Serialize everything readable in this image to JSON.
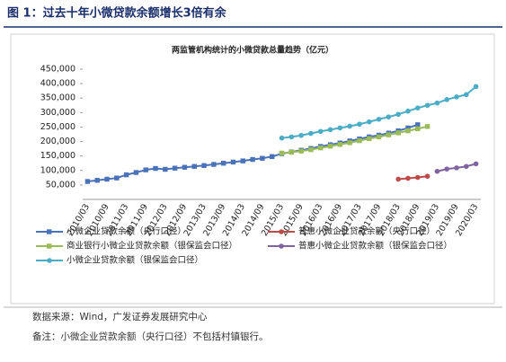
{
  "header": "图 1：过去十年小微贷款余额增长3倍有余",
  "source": "数据来源：Wind，广发证券发展研究中心",
  "note": "备注：小微企业贷款余额（央行口径）不包括村镇银行。",
  "chart_data": {
    "type": "line",
    "title": "两监管机构统计的小微贷款总量趋势（亿元）",
    "categories": [
      "2010/03",
      null,
      "2010/09",
      null,
      "2011/03",
      null,
      "2011/09",
      null,
      "2012/03",
      null,
      "2012/09",
      null,
      "2013/03",
      null,
      "2013/09",
      null,
      "2014/03",
      null,
      "2014/09",
      null,
      "2015/03",
      null,
      "2015/09",
      null,
      "2016/03",
      null,
      "2016/09",
      null,
      "2017/03",
      null,
      "2017/09",
      null,
      "2018/03",
      null,
      "2018/09",
      null,
      "2019/03",
      null,
      "2019/09",
      null,
      "2020/03"
    ],
    "ylim": [
      0,
      450000
    ],
    "yticks": [
      {
        "value": 50000,
        "label": "50,000"
      },
      {
        "value": 100000,
        "label": "100,000"
      },
      {
        "value": 150000,
        "label": "150,000"
      },
      {
        "value": 200000,
        "label": "200,000"
      },
      {
        "value": 250000,
        "label": "250,000"
      },
      {
        "value": 300000,
        "label": "300,000"
      },
      {
        "value": 350000,
        "label": "350,000"
      },
      {
        "value": 400000,
        "label": "400,000"
      },
      {
        "value": 450000,
        "label": "450,000"
      }
    ],
    "series": [
      {
        "name": "小微企业贷款余额（央行口径）",
        "color": "#4a72b8",
        "marker": "square",
        "values": [
          62000,
          66000,
          70000,
          74000,
          85000,
          93000,
          102000,
          107000,
          104000,
          108000,
          111000,
          114000,
          117000,
          121000,
          125000,
          129000,
          133000,
          138000,
          142000,
          148000,
          158000,
          164000,
          170000,
          176000,
          183000,
          189000,
          195000,
          202000,
          209000,
          216000,
          222000,
          229000,
          237000,
          247000,
          258000,
          null,
          null,
          null,
          null,
          null,
          null
        ]
      },
      {
        "name": "普惠小微企业贷款余额（央行口径）",
        "color": "#be4b48",
        "marker": "circle",
        "values": [
          null,
          null,
          null,
          null,
          null,
          null,
          null,
          null,
          null,
          null,
          null,
          null,
          null,
          null,
          null,
          null,
          null,
          null,
          null,
          null,
          null,
          null,
          null,
          null,
          null,
          null,
          null,
          null,
          null,
          null,
          null,
          null,
          70000,
          73000,
          76000,
          80000,
          null,
          null,
          null,
          null,
          null
        ]
      },
      {
        "name": "商业银行小微企业贷款余额（银保监会口径）",
        "color": "#9bbb59",
        "marker": "square",
        "values": [
          null,
          null,
          null,
          null,
          null,
          null,
          null,
          null,
          null,
          null,
          null,
          null,
          null,
          null,
          null,
          null,
          null,
          null,
          null,
          null,
          160000,
          163000,
          167000,
          172000,
          178000,
          184000,
          190000,
          196000,
          203000,
          210000,
          216000,
          223000,
          230000,
          237000,
          244000,
          252000,
          null,
          null,
          null,
          null,
          null
        ]
      },
      {
        "name": "普惠小微企业贷款余额（银保监会口径）",
        "color": "#8064a2",
        "marker": "circle",
        "values": [
          null,
          null,
          null,
          null,
          null,
          null,
          null,
          null,
          null,
          null,
          null,
          null,
          null,
          null,
          null,
          null,
          null,
          null,
          null,
          null,
          null,
          null,
          null,
          null,
          null,
          null,
          null,
          null,
          null,
          null,
          null,
          null,
          null,
          null,
          null,
          null,
          97000,
          105000,
          109000,
          114000,
          123000
        ]
      },
      {
        "name": "小微企业贷款余额（银保监会口径）",
        "color": "#4bacc6",
        "marker": "circle",
        "values": [
          null,
          null,
          null,
          null,
          null,
          null,
          null,
          null,
          null,
          null,
          null,
          null,
          null,
          null,
          null,
          null,
          null,
          null,
          null,
          null,
          212000,
          216000,
          221000,
          228000,
          235000,
          241000,
          247000,
          253000,
          260000,
          268000,
          277000,
          285000,
          294000,
          305000,
          316000,
          325000,
          333000,
          345000,
          354000,
          362000,
          390000
        ]
      }
    ]
  }
}
